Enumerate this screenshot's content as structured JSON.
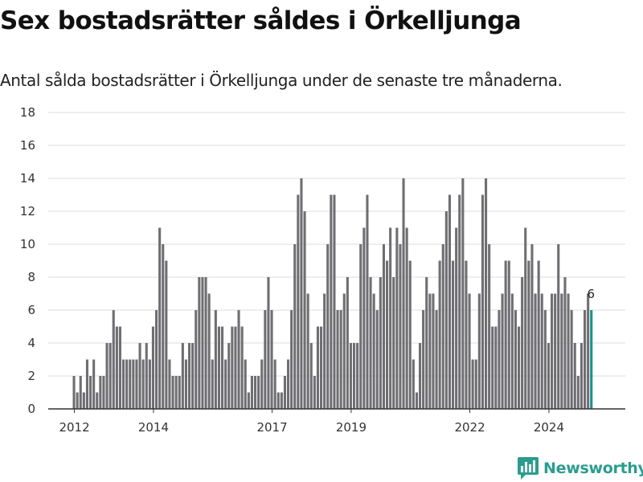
{
  "header": {
    "title": "Sex bostadsrätter såldes i Örkelljunga",
    "subtitle": "Antal sålda bostadsrätter i Örkelljunga under de senaste tre månaderna."
  },
  "brand": {
    "name": "Newsworthy",
    "icon": "newsworthy-logo-icon",
    "color": "#2a9d8f"
  },
  "colors": {
    "bar": "#6f6e72",
    "highlight": "#17938a",
    "grid": "#dddddd",
    "axis": "#333333"
  },
  "chart_data": {
    "type": "bar",
    "x_unit": "month",
    "x_start": "2012-01",
    "ylim": [
      0,
      18
    ],
    "yticks": [
      0,
      2,
      4,
      6,
      8,
      10,
      12,
      14,
      16,
      18
    ],
    "xticks": [
      {
        "label": "2012",
        "date": "2012-01"
      },
      {
        "label": "2014",
        "date": "2014-01"
      },
      {
        "label": "2017",
        "date": "2017-01"
      },
      {
        "label": "2019",
        "date": "2019-01"
      },
      {
        "label": "2022",
        "date": "2022-01"
      },
      {
        "label": "2024",
        "date": "2024-01"
      }
    ],
    "values": [
      2,
      1,
      2,
      1,
      3,
      2,
      3,
      1,
      2,
      2,
      4,
      4,
      6,
      5,
      5,
      3,
      3,
      3,
      3,
      3,
      4,
      3,
      4,
      3,
      5,
      6,
      11,
      10,
      9,
      3,
      2,
      2,
      2,
      4,
      3,
      4,
      4,
      6,
      8,
      8,
      8,
      7,
      3,
      6,
      5,
      5,
      3,
      4,
      5,
      5,
      6,
      5,
      3,
      1,
      2,
      2,
      2,
      3,
      6,
      8,
      6,
      3,
      1,
      1,
      2,
      3,
      6,
      10,
      13,
      14,
      12,
      7,
      4,
      2,
      5,
      5,
      7,
      10,
      13,
      13,
      6,
      6,
      7,
      8,
      4,
      4,
      4,
      10,
      11,
      13,
      8,
      7,
      6,
      8,
      10,
      9,
      11,
      8,
      11,
      10,
      14,
      11,
      9,
      3,
      1,
      4,
      6,
      8,
      7,
      7,
      6,
      9,
      10,
      12,
      13,
      9,
      11,
      13,
      14,
      9,
      7,
      3,
      3,
      7,
      13,
      14,
      10,
      5,
      5,
      6,
      7,
      9,
      9,
      7,
      6,
      5,
      8,
      11,
      9,
      10,
      7,
      9,
      7,
      6,
      4,
      7,
      7,
      10,
      7,
      8,
      7,
      6,
      4,
      2,
      4,
      6,
      7,
      6
    ],
    "highlight_last": true,
    "highlight_label": "6"
  }
}
